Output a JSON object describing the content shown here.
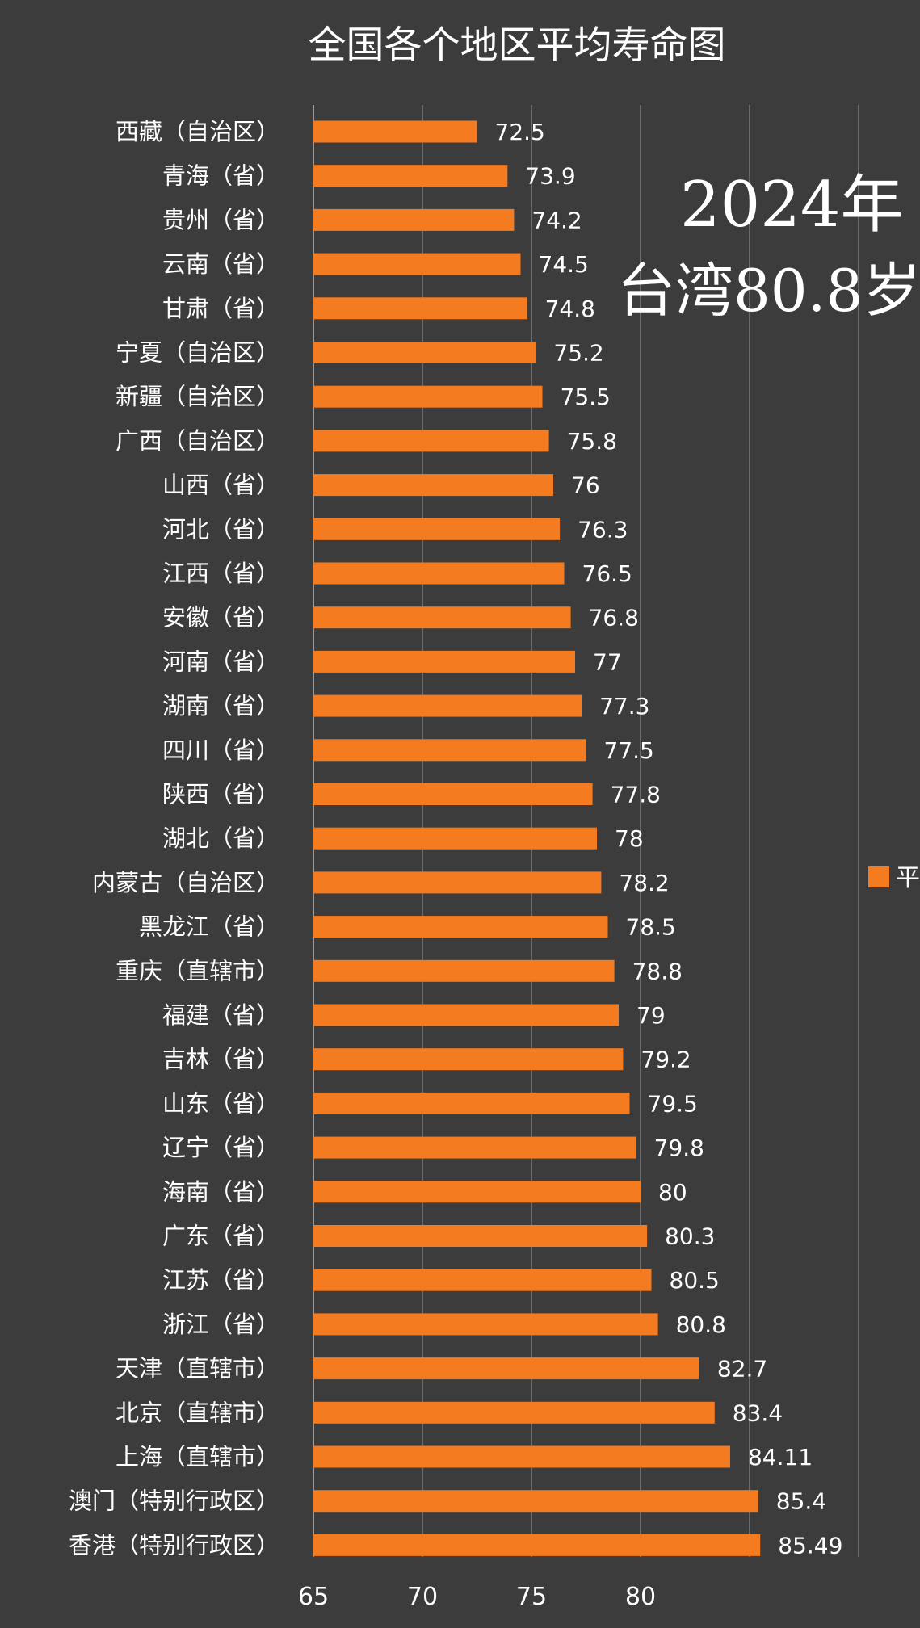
{
  "chart_data": {
    "type": "bar",
    "orientation": "horizontal",
    "title": "全国各个地区平均寿命图",
    "categories": [
      "西藏（自治区）",
      "青海（省）",
      "贵州（省）",
      "云南（省）",
      "甘肃（省）",
      "宁夏（自治区）",
      "新疆（自治区）",
      "广西（自治区）",
      "山西（省）",
      "河北（省）",
      "江西（省）",
      "安徽（省）",
      "河南（省）",
      "湖南（省）",
      "四川（省）",
      "陕西（省）",
      "湖北（省）",
      "内蒙古（自治区）",
      "黑龙江（省）",
      "重庆（直辖市）",
      "福建（省）",
      "吉林（省）",
      "山东（省）",
      "辽宁（省）",
      "海南（省）",
      "广东（省）",
      "江苏（省）",
      "浙江（省）",
      "天津（直辖市）",
      "北京（直辖市）",
      "上海（直辖市）",
      "澳门（特别行政区）",
      "香港（特别行政区）"
    ],
    "values": [
      72.5,
      73.9,
      74.2,
      74.5,
      74.8,
      75.2,
      75.5,
      75.8,
      76,
      76.3,
      76.5,
      76.8,
      77,
      77.3,
      77.5,
      77.8,
      78,
      78.2,
      78.5,
      78.8,
      79,
      79.2,
      79.5,
      79.8,
      80,
      80.3,
      80.5,
      80.8,
      82.7,
      83.4,
      84.11,
      85.4,
      85.49
    ],
    "xlim": [
      65,
      90
    ],
    "x_ticks": [
      65,
      70,
      75,
      80
    ],
    "grid": "vertical",
    "legend_position": "right",
    "legend_label": "平",
    "bar_color": "#f47b20",
    "background_color": "#3c3c3c"
  },
  "overlay": {
    "line1": "2024年",
    "line2": "台湾80.8岁"
  }
}
